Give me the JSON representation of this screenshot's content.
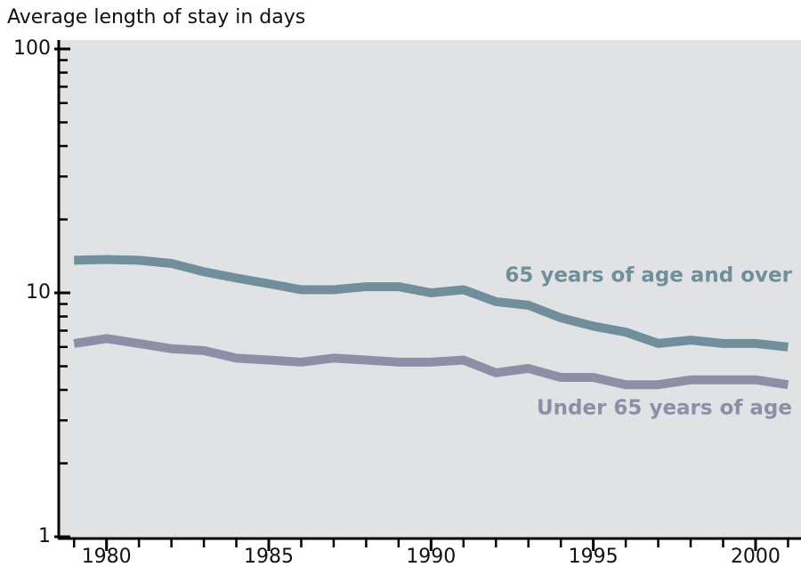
{
  "chart_data": {
    "type": "line",
    "title": "Average length of stay in days",
    "x": [
      1979,
      1980,
      1981,
      1982,
      1983,
      1984,
      1985,
      1986,
      1987,
      1988,
      1989,
      1990,
      1991,
      1992,
      1993,
      1994,
      1995,
      1996,
      1997,
      1998,
      1999,
      2000,
      2001
    ],
    "series": [
      {
        "name": "65 years of age and over",
        "color": "#6e8f9b",
        "values": [
          13.6,
          13.7,
          13.6,
          13.2,
          12.2,
          11.5,
          10.9,
          10.3,
          10.3,
          10.6,
          10.6,
          10.0,
          10.3,
          9.2,
          8.9,
          7.9,
          7.3,
          6.9,
          6.2,
          6.4,
          6.2,
          6.2,
          6.0
        ]
      },
      {
        "name": "Under 65 years of age",
        "color": "#8f8ea6",
        "values": [
          6.2,
          6.5,
          6.2,
          5.9,
          5.8,
          5.4,
          5.3,
          5.2,
          5.4,
          5.3,
          5.2,
          5.2,
          5.3,
          4.7,
          4.9,
          4.5,
          4.5,
          4.2,
          4.2,
          4.4,
          4.4,
          4.4,
          4.2
        ]
      }
    ],
    "xlim": [
      1978.5,
      2001.4
    ],
    "xticks": [
      1980,
      1985,
      1990,
      1995,
      2000
    ],
    "xminorticks": [
      1979,
      1980,
      1981,
      1982,
      1983,
      1984,
      1985,
      1986,
      1987,
      1988,
      1989,
      1990,
      1991,
      1992,
      1993,
      1994,
      1995,
      1996,
      1997,
      1998,
      1999,
      2000,
      2001
    ],
    "ylim": [
      1,
      100
    ],
    "yticks": [
      1,
      10,
      100
    ],
    "yminorticks": [
      2,
      3,
      4,
      5,
      6,
      7,
      8,
      9,
      20,
      30,
      40,
      50,
      60,
      70,
      80,
      90
    ],
    "log_y": true,
    "plot_background": "#e1e2e4"
  }
}
